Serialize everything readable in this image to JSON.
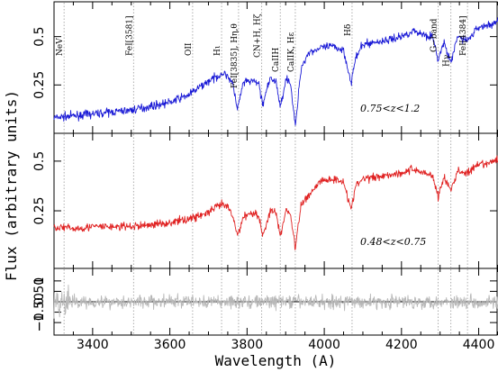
{
  "chart_data": {
    "type": "line",
    "xlabel": "Wavelength (A)",
    "ylabel": "Flux (arbitrary units)",
    "xlim": [
      3300,
      4450
    ],
    "x_ticks": [
      "3400",
      "3600",
      "3800",
      "4000",
      "4200",
      "4400"
    ],
    "x_tick_values": [
      3400,
      3600,
      3800,
      4000,
      4200,
      4400
    ],
    "spectral_lines": [
      {
        "label": "NeV",
        "wavelength": 3326
      },
      {
        "label": "FeI[3581]",
        "wavelength": 3506
      },
      {
        "label": "OII",
        "wavelength": 3659
      },
      {
        "label": "Hι",
        "wavelength": 3734
      },
      {
        "label": "FeI[3835], Hη,θ",
        "wavelength": 3778
      },
      {
        "label": "CN+H, Hζ",
        "wavelength": 3838
      },
      {
        "label": "CaIIH",
        "wavelength": 3886
      },
      {
        "label": "CaIIK, Hε",
        "wavelength": 3925
      },
      {
        "label": "Hδ",
        "wavelength": 4072
      },
      {
        "label": "G−band",
        "wavelength": 4295
      },
      {
        "label": "Hγ",
        "wavelength": 4328
      },
      {
        "label": "FeI[4384]",
        "wavelength": 4371
      }
    ],
    "panels": [
      {
        "annotation": "0.75<z<1.2",
        "color": "#1a1ad6",
        "ylim": [
          0.0,
          0.68
        ],
        "y_ticks": [
          "0.25",
          "0.5"
        ],
        "y_tick_values": [
          0.25,
          0.5
        ],
        "x": [
          3300,
          3350,
          3400,
          3450,
          3500,
          3550,
          3600,
          3650,
          3700,
          3720,
          3735,
          3750,
          3765,
          3775,
          3790,
          3810,
          3830,
          3840,
          3860,
          3875,
          3886,
          3900,
          3912,
          3925,
          3940,
          3960,
          3990,
          4020,
          4050,
          4070,
          4080,
          4100,
          4130,
          4160,
          4200,
          4230,
          4260,
          4280,
          4295,
          4310,
          4328,
          4345,
          4371,
          4400,
          4430,
          4450
        ],
        "y": [
          0.08,
          0.09,
          0.1,
          0.11,
          0.12,
          0.14,
          0.16,
          0.2,
          0.27,
          0.29,
          0.31,
          0.3,
          0.24,
          0.12,
          0.26,
          0.27,
          0.26,
          0.15,
          0.28,
          0.27,
          0.13,
          0.28,
          0.27,
          0.03,
          0.34,
          0.42,
          0.44,
          0.45,
          0.43,
          0.26,
          0.38,
          0.46,
          0.47,
          0.48,
          0.5,
          0.53,
          0.51,
          0.5,
          0.38,
          0.47,
          0.36,
          0.5,
          0.48,
          0.55,
          0.56,
          0.58
        ]
      },
      {
        "annotation": "0.48<z<0.75",
        "color": "#e02222",
        "ylim": [
          -0.04,
          0.64
        ],
        "y_ticks": [
          "0.25",
          "0.5"
        ],
        "y_tick_values": [
          0.25,
          0.5
        ],
        "x": [
          3300,
          3350,
          3400,
          3450,
          3500,
          3550,
          3600,
          3650,
          3700,
          3720,
          3735,
          3750,
          3765,
          3775,
          3790,
          3810,
          3830,
          3840,
          3860,
          3875,
          3886,
          3900,
          3912,
          3925,
          3940,
          3960,
          3990,
          4020,
          4050,
          4070,
          4080,
          4100,
          4130,
          4160,
          4200,
          4230,
          4260,
          4280,
          4295,
          4310,
          4328,
          4345,
          4371,
          4400,
          4430,
          4450
        ],
        "y": [
          0.17,
          0.16,
          0.17,
          0.17,
          0.17,
          0.18,
          0.19,
          0.21,
          0.24,
          0.27,
          0.28,
          0.27,
          0.21,
          0.12,
          0.22,
          0.24,
          0.23,
          0.12,
          0.25,
          0.24,
          0.12,
          0.25,
          0.24,
          0.06,
          0.28,
          0.33,
          0.4,
          0.41,
          0.4,
          0.25,
          0.37,
          0.41,
          0.42,
          0.43,
          0.44,
          0.46,
          0.44,
          0.43,
          0.32,
          0.42,
          0.35,
          0.45,
          0.44,
          0.48,
          0.49,
          0.51
        ]
      },
      {
        "annotation": "",
        "color": "#b8b8b8",
        "ylim": [
          -1.6,
          1.6
        ],
        "y_ticks": [
          "−0.50",
          "0.50",
          "1",
          "−1"
        ],
        "y_tick_values": [
          -0.5,
          0.5,
          1,
          -1
        ],
        "x": [
          3300,
          4450
        ],
        "y": [
          0.0,
          0.0
        ],
        "note": "residual noise around zero"
      }
    ]
  }
}
